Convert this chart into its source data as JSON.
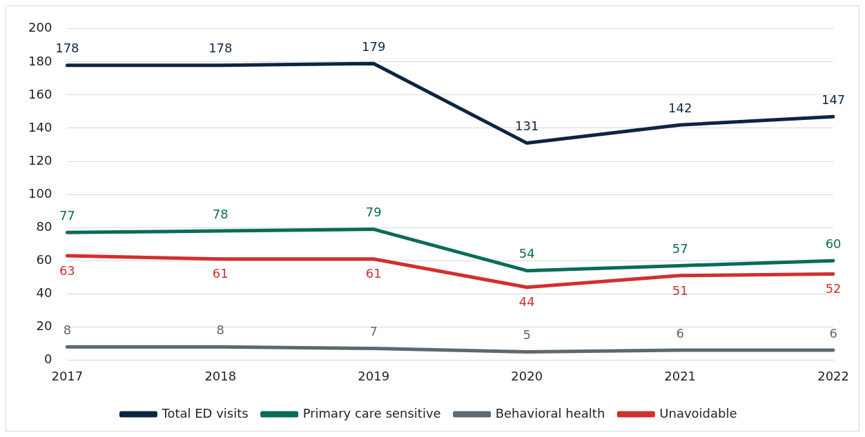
{
  "chart_data": {
    "type": "line",
    "categories": [
      "2017",
      "2018",
      "2019",
      "2020",
      "2021",
      "2022"
    ],
    "series": [
      {
        "name": "Total ED visits",
        "color": "#0e2443",
        "values": [
          178,
          178,
          179,
          131,
          142,
          147
        ]
      },
      {
        "name": "Primary care sensitive",
        "color": "#0b6b57",
        "values": [
          77,
          78,
          79,
          54,
          57,
          60
        ]
      },
      {
        "name": "Behavioral health",
        "color": "#5d6870",
        "values": [
          8,
          8,
          7,
          5,
          6,
          6
        ]
      },
      {
        "name": "Unavoidable",
        "color": "#d22f2f",
        "values": [
          63,
          61,
          61,
          44,
          51,
          52
        ]
      }
    ],
    "ylim": [
      0,
      200
    ],
    "yticks": [
      0,
      20,
      40,
      60,
      80,
      100,
      120,
      140,
      160,
      180,
      200
    ],
    "grid": "y",
    "legend": "bottom",
    "data_labels": true,
    "marker": "none",
    "line_style": "solid"
  }
}
